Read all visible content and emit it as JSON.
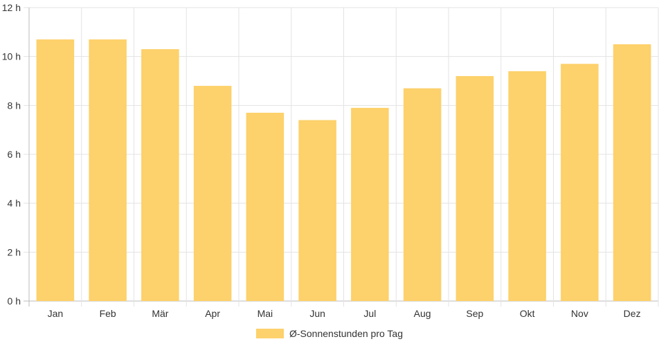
{
  "chart_data": {
    "type": "bar",
    "categories": [
      "Jan",
      "Feb",
      "Mär",
      "Apr",
      "Mai",
      "Jun",
      "Jul",
      "Aug",
      "Sep",
      "Okt",
      "Nov",
      "Dez"
    ],
    "series": [
      {
        "name": "Ø-Sonnenstunden pro Tag",
        "values": [
          10.7,
          10.7,
          10.3,
          8.8,
          7.7,
          7.4,
          7.9,
          8.7,
          9.2,
          9.4,
          9.7,
          10.5
        ],
        "color": "#fdd16b"
      }
    ],
    "y_ticks": [
      "0 h",
      "2 h",
      "4 h",
      "6 h",
      "8 h",
      "10 h",
      "12 h"
    ],
    "ylim": [
      0,
      12
    ],
    "grid": true,
    "legend_position": "bottom"
  }
}
